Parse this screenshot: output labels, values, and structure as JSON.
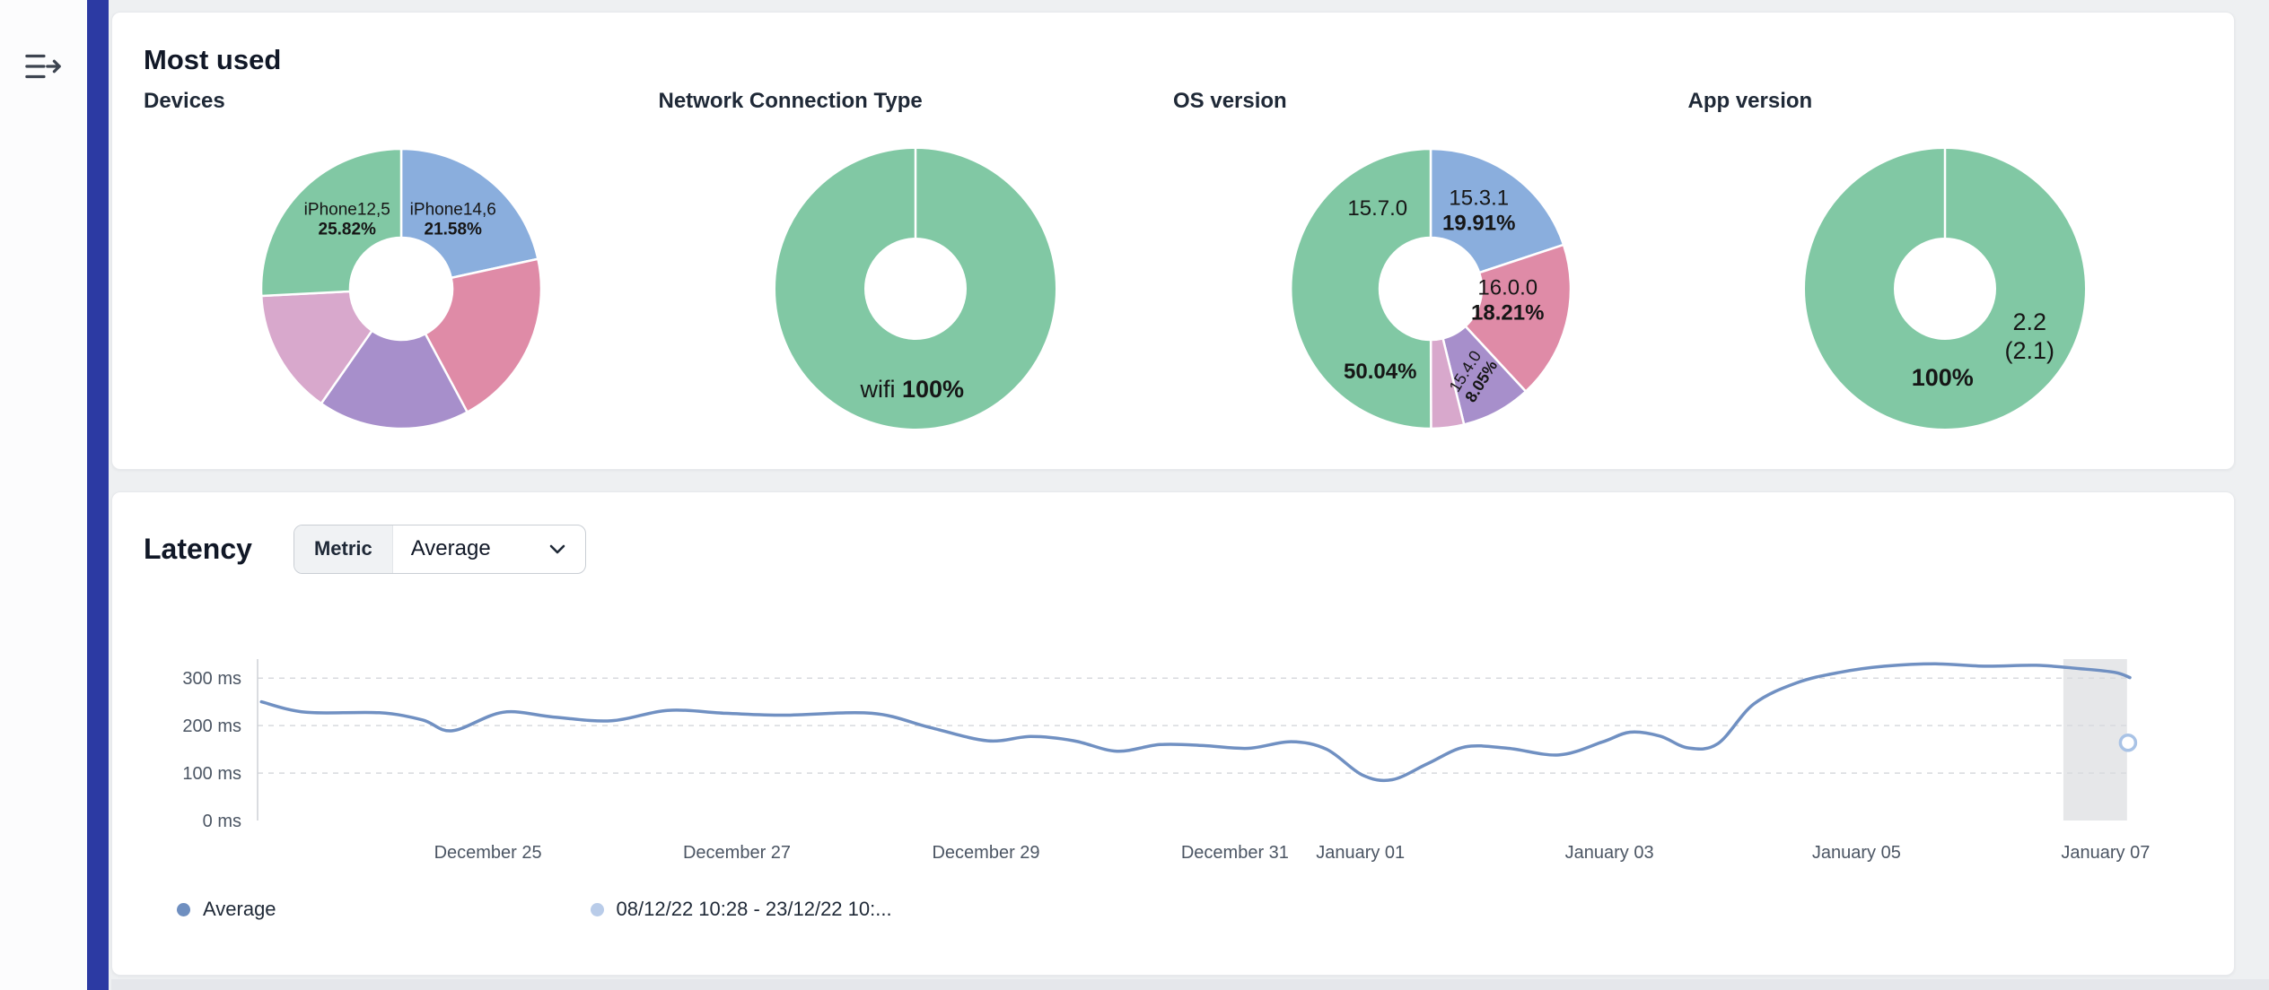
{
  "app": {
    "background": "#eef0f2",
    "accent_bar_color": "#2c3aa3"
  },
  "most_used": {
    "title": "Most used",
    "sections": [
      {
        "title": "Devices"
      },
      {
        "title": "Network Connection Type"
      },
      {
        "title": "OS version"
      },
      {
        "title": "App version"
      }
    ],
    "labels": {
      "devices_left": {
        "name": "iPhone12,5",
        "pct": "25.82%"
      },
      "devices_right": {
        "name": "iPhone14,6",
        "pct": "21.58%"
      },
      "network_center": {
        "name": "wifi",
        "pct": "100%"
      },
      "os_top_left": "15.7.0",
      "os_green_pct": "50.04%",
      "os_blue": {
        "name": "15.3.1",
        "pct": "19.91%"
      },
      "os_pink": {
        "name": "16.0.0",
        "pct": "18.21%"
      },
      "os_rotated": {
        "name": "15.4.0",
        "pct": "8.05%"
      },
      "app_version_line1": "2.2",
      "app_version_line2": "(2.1)",
      "app_pct": "100%"
    }
  },
  "latency": {
    "title": "Latency",
    "metric_label": "Metric",
    "metric_value": "Average",
    "legend": [
      {
        "label": "Average",
        "color": "#6f8fc0"
      },
      {
        "label": "08/12/22 10:28 - 23/12/22 10:...",
        "color": "#b9cce9"
      }
    ]
  },
  "chart_data": {
    "palette": {
      "green": "#81c8a4",
      "blue": "#8aaedd",
      "pink": "#df8ba7",
      "purple": "#a78fcb",
      "lightpink": "#d8a8cc"
    },
    "donuts": [
      {
        "id": "devices",
        "type": "pie",
        "title": "Devices",
        "slices": [
          {
            "label": "iPhone14,6",
            "value": 21.58,
            "color": "blue"
          },
          {
            "label": null,
            "value": 20.6,
            "color": "pink"
          },
          {
            "label": null,
            "value": 17.5,
            "color": "purple"
          },
          {
            "label": null,
            "value": 14.5,
            "color": "lightpink"
          },
          {
            "label": "iPhone12,5",
            "value": 25.82,
            "color": "green"
          }
        ]
      },
      {
        "id": "network",
        "type": "pie",
        "title": "Network Connection Type",
        "slices": [
          {
            "label": "wifi",
            "value": 100,
            "color": "green"
          }
        ]
      },
      {
        "id": "os",
        "type": "pie",
        "title": "OS version",
        "slices": [
          {
            "label": "15.3.1",
            "value": 19.91,
            "color": "blue"
          },
          {
            "label": "16.0.0",
            "value": 18.21,
            "color": "pink"
          },
          {
            "label": "15.4.0",
            "value": 8.05,
            "color": "purple"
          },
          {
            "label": null,
            "value": 3.79,
            "color": "lightpink"
          },
          {
            "label": "15.7.0",
            "value": 50.04,
            "color": "green"
          }
        ]
      },
      {
        "id": "app",
        "type": "pie",
        "title": "App version",
        "slices": [
          {
            "label": "2.2 (2.1)",
            "value": 100,
            "color": "green"
          }
        ]
      }
    ],
    "latency": {
      "type": "line",
      "title": "Latency",
      "series": [
        {
          "name": "Average"
        }
      ],
      "y_unit": "ms",
      "y_max": 340,
      "y_ticks": [
        {
          "value": 300,
          "label": "300 ms"
        },
        {
          "value": 200,
          "label": "200 ms"
        },
        {
          "value": 100,
          "label": "100 ms"
        },
        {
          "value": 0,
          "label": "0 ms"
        }
      ],
      "x_ticks": [
        {
          "pct": 12.3,
          "label": "December 25"
        },
        {
          "pct": 25.6,
          "label": "December 27"
        },
        {
          "pct": 38.9,
          "label": "December 29"
        },
        {
          "pct": 52.2,
          "label": "December 31"
        },
        {
          "pct": 58.9,
          "label": "January 01"
        },
        {
          "pct": 72.2,
          "label": "January 03"
        },
        {
          "pct": 85.4,
          "label": "January 05"
        },
        {
          "pct": 98.7,
          "label": "January 07"
        }
      ],
      "points_x_pct_y_ms": [
        [
          0.2,
          250
        ],
        [
          2.6,
          228
        ],
        [
          6.5,
          227
        ],
        [
          8.8,
          212
        ],
        [
          10.4,
          189
        ],
        [
          13.1,
          228
        ],
        [
          15.8,
          218
        ],
        [
          18.9,
          210
        ],
        [
          21.9,
          232
        ],
        [
          25,
          226
        ],
        [
          28.1,
          222
        ],
        [
          32.8,
          226
        ],
        [
          35.9,
          196
        ],
        [
          39,
          168
        ],
        [
          41.3,
          177
        ],
        [
          43.6,
          168
        ],
        [
          45.9,
          146
        ],
        [
          48.2,
          160
        ],
        [
          50.5,
          158
        ],
        [
          52.9,
          152
        ],
        [
          55.2,
          166
        ],
        [
          57.1,
          150
        ],
        [
          59,
          96
        ],
        [
          60.6,
          86
        ],
        [
          62.5,
          120
        ],
        [
          64.5,
          155
        ],
        [
          66.8,
          152
        ],
        [
          69.5,
          138
        ],
        [
          71.8,
          165
        ],
        [
          73.3,
          186
        ],
        [
          74.9,
          178
        ],
        [
          76.4,
          153
        ],
        [
          78,
          162
        ],
        [
          79.9,
          245
        ],
        [
          82.2,
          290
        ],
        [
          84.5,
          312
        ],
        [
          86.9,
          325
        ],
        [
          89.6,
          330
        ],
        [
          92.3,
          325
        ],
        [
          95,
          327
        ],
        [
          97.3,
          320
        ],
        [
          99.2,
          312
        ],
        [
          100,
          301
        ]
      ],
      "line_color": "#7090c2",
      "selection_band": {
        "x0_pct": 96.45,
        "x1_pct": 99.85,
        "color": "#e6e7e9"
      },
      "end_marker": {
        "x_pct": 99.9,
        "y_ms": 164,
        "color": "#a9c3e6"
      },
      "grid": "dashed-horizontal",
      "legend_position": "bottom-left"
    }
  }
}
